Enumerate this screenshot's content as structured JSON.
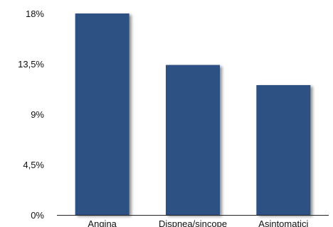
{
  "chart_data": {
    "type": "bar",
    "categories": [
      "Angina",
      "Dispnea/sincope",
      "Asintomatici"
    ],
    "values": [
      18,
      13.4,
      11.6
    ],
    "ylim": [
      0,
      18
    ],
    "yticks": [
      0,
      4.5,
      9,
      13.5,
      18
    ],
    "ytick_labels": [
      "0%",
      "4,5%",
      "9%",
      "13,5%",
      "18%"
    ],
    "title": "",
    "xlabel": "",
    "ylabel": "",
    "grid": false,
    "legend": "none",
    "colors": {
      "bar": "#2e5184",
      "axis": "#222222",
      "text": "#111111"
    }
  }
}
